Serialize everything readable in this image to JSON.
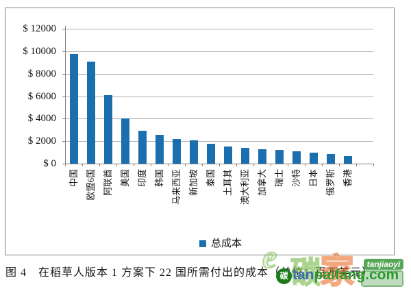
{
  "chart_data": {
    "type": "bar",
    "title": "图 4　在稻草人版本 1 方案下 22 国所需付出的成本（单位：百万美元）",
    "categories": [
      "中国",
      "欧盟6国",
      "阿联酋",
      "美国",
      "印度",
      "韩国",
      "马来西亚",
      "新加坡",
      "泰国",
      "土耳其",
      "澳大利亚",
      "加拿大",
      "瑞士",
      "沙特",
      "日本",
      "俄罗斯",
      "香港"
    ],
    "values": [
      9750,
      9100,
      6100,
      4050,
      2950,
      2580,
      2220,
      2080,
      1770,
      1550,
      1400,
      1300,
      1210,
      1100,
      980,
      870,
      680
    ],
    "series_name": "总成本",
    "xlabel": "",
    "ylabel": "",
    "ylim": [
      0,
      12000
    ],
    "y_tick_step": 2000,
    "y_tick_labels": [
      "$ 0",
      "$ 2000",
      "$ 4000",
      "$ 6000",
      "$ 8000",
      "$ 10000",
      "$ 12000"
    ],
    "grid": "horizontal",
    "legend_position": "bottom-center",
    "bar_color": "#1b6fae"
  },
  "legend": {
    "label": "总成本"
  },
  "caption": {
    "text": "图 4　在稻草人版本 1 方案下 22 国所需付出的成本（单位：百万美元）"
  },
  "watermark": {
    "glyph_e": "e",
    "glyph_tan": "碳",
    "glyph_jia": "家",
    "badge_label": "tanjiaoyi",
    "logo_char": "碳",
    "brand_prefix": "tan",
    "brand_suffix": "paifang.com",
    "green": "#2e9a2e",
    "orange": "#e8641b",
    "blue": "#3b6db6"
  }
}
